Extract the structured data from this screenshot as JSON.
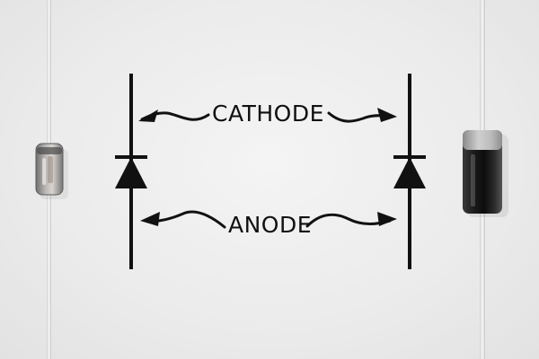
{
  "labels": {
    "cathode": "CATHODE",
    "anode": "ANODE"
  },
  "colors": {
    "background": "#ececec",
    "ink": "#111111",
    "glass_diode_body": "#9a9a9a",
    "dark_diode_body": "#2a2a2a",
    "lead_wire": "#d9d9d9"
  }
}
